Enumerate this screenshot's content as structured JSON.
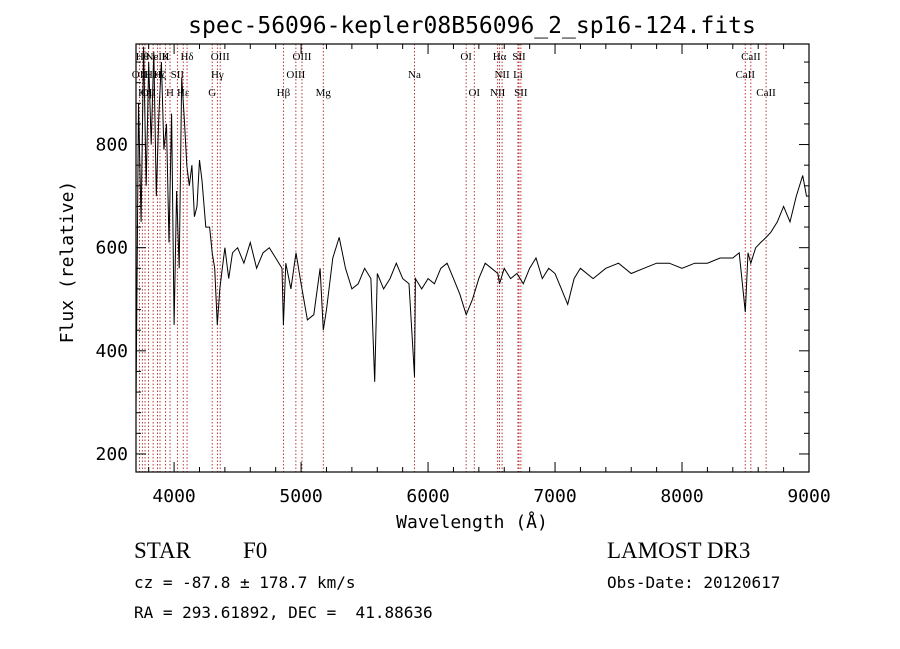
{
  "chart_data": {
    "type": "line",
    "title": "spec-56096-kepler08B56096_2_sp16-124.fits",
    "xlabel": "Wavelength (Å)",
    "ylabel": "Flux (relative)",
    "xlim": [
      3700,
      9000
    ],
    "ylim": [
      165,
      995
    ],
    "xticks": [
      4000,
      5000,
      6000,
      7000,
      8000,
      9000
    ],
    "yticks": [
      200,
      400,
      600,
      800
    ],
    "grid": false,
    "series": [
      {
        "x": [
          3700,
          3720,
          3740,
          3760,
          3780,
          3800,
          3820,
          3840,
          3860,
          3880,
          3900,
          3920,
          3940,
          3960,
          3980,
          4000,
          4020,
          4040,
          4060,
          4080,
          4100,
          4120,
          4140,
          4160,
          4180,
          4200,
          4220,
          4250,
          4280,
          4300,
          4320,
          4340,
          4360,
          4380,
          4400,
          4430,
          4460,
          4500,
          4550,
          4600,
          4650,
          4700,
          4750,
          4800,
          4850,
          4861,
          4880,
          4920,
          4960,
          5000,
          5050,
          5100,
          5150,
          5175,
          5200,
          5250,
          5300,
          5350,
          5400,
          5450,
          5500,
          5550,
          5580,
          5600,
          5650,
          5700,
          5750,
          5800,
          5850,
          5893,
          5900,
          5950,
          6000,
          6050,
          6100,
          6150,
          6200,
          6250,
          6300,
          6350,
          6400,
          6450,
          6500,
          6550,
          6563,
          6600,
          6650,
          6700,
          6750,
          6800,
          6850,
          6900,
          6950,
          7000,
          7050,
          7100,
          7150,
          7200,
          7300,
          7400,
          7500,
          7600,
          7700,
          7800,
          7900,
          8000,
          8100,
          8200,
          8300,
          8400,
          8450,
          8498,
          8520,
          8542,
          8580,
          8620,
          8662,
          8700,
          8750,
          8800,
          8850,
          8900,
          8950,
          8980,
          9000
        ],
        "values": [
          290,
          880,
          650,
          990,
          720,
          960,
          800,
          980,
          700,
          860,
          960,
          790,
          840,
          610,
          860,
          450,
          710,
          560,
          930,
          850,
          760,
          720,
          760,
          660,
          680,
          770,
          730,
          640,
          640,
          590,
          560,
          450,
          520,
          560,
          600,
          540,
          590,
          600,
          570,
          610,
          560,
          590,
          600,
          580,
          560,
          450,
          570,
          520,
          590,
          530,
          460,
          470,
          560,
          440,
          480,
          580,
          620,
          560,
          520,
          530,
          560,
          540,
          340,
          550,
          520,
          540,
          570,
          540,
          530,
          350,
          540,
          520,
          540,
          530,
          560,
          570,
          540,
          510,
          470,
          500,
          540,
          570,
          560,
          550,
          530,
          560,
          540,
          550,
          530,
          560,
          580,
          540,
          560,
          550,
          520,
          490,
          540,
          560,
          540,
          560,
          570,
          550,
          560,
          570,
          570,
          560,
          570,
          570,
          580,
          580,
          590,
          475,
          590,
          570,
          600,
          610,
          620,
          630,
          650,
          680,
          650,
          700,
          740,
          700,
          700
        ]
      }
    ],
    "lines": [
      {
        "x": 3727,
        "label": "OII",
        "row": 1
      },
      {
        "x": 3750,
        "label": "Hθ",
        "row": 0
      },
      {
        "x": 3771,
        "label": "Hη",
        "row": 2
      },
      {
        "x": 3798,
        "label": "OII",
        "row": 2
      },
      {
        "x": 3835,
        "label": "HeI",
        "row": 1
      },
      {
        "x": 3869,
        "label": "NeIII",
        "row": 0
      },
      {
        "x": 3889,
        "label": "Hζ",
        "row": 1
      },
      {
        "x": 3933,
        "label": "K",
        "row": 0
      },
      {
        "x": 3968,
        "label": "H",
        "row": 2
      },
      {
        "x": 4026,
        "label": "SII",
        "row": 1
      },
      {
        "x": 4072,
        "label": "Hε",
        "row": 2
      },
      {
        "x": 4102,
        "label": "Hδ",
        "row": 0
      },
      {
        "x": 4300,
        "label": "G",
        "row": 2
      },
      {
        "x": 4341,
        "label": "Hγ",
        "row": 1
      },
      {
        "x": 4363,
        "label": "OIII",
        "row": 0
      },
      {
        "x": 4861,
        "label": "Hβ",
        "row": 2
      },
      {
        "x": 4959,
        "label": "OIII",
        "row": 1
      },
      {
        "x": 5007,
        "label": "OIII",
        "row": 0
      },
      {
        "x": 5175,
        "label": "Mg",
        "row": 2
      },
      {
        "x": 5893,
        "label": "Na",
        "row": 1
      },
      {
        "x": 6300,
        "label": "OI",
        "row": 0
      },
      {
        "x": 6364,
        "label": "OI",
        "row": 2
      },
      {
        "x": 6548,
        "label": "NII",
        "row": 2
      },
      {
        "x": 6563,
        "label": "Hα",
        "row": 0
      },
      {
        "x": 6583,
        "label": "NII",
        "row": 1
      },
      {
        "x": 6708,
        "label": "Li",
        "row": 1
      },
      {
        "x": 6716,
        "label": "SII",
        "row": 0
      },
      {
        "x": 6731,
        "label": "SII",
        "row": 2
      },
      {
        "x": 8498,
        "label": "CaII",
        "row": 1
      },
      {
        "x": 8542,
        "label": "CaII",
        "row": 0
      },
      {
        "x": 8662,
        "label": "CaII",
        "row": 2
      }
    ]
  },
  "info": {
    "object_class": "STAR",
    "subclass": "F0",
    "survey": "LAMOST DR3",
    "redshift": "cz = -87.8 ± 178.7 km/s",
    "obs_date": "Obs-Date: 20120617",
    "coords": "RA = 293.61892, DEC =  41.88636"
  }
}
